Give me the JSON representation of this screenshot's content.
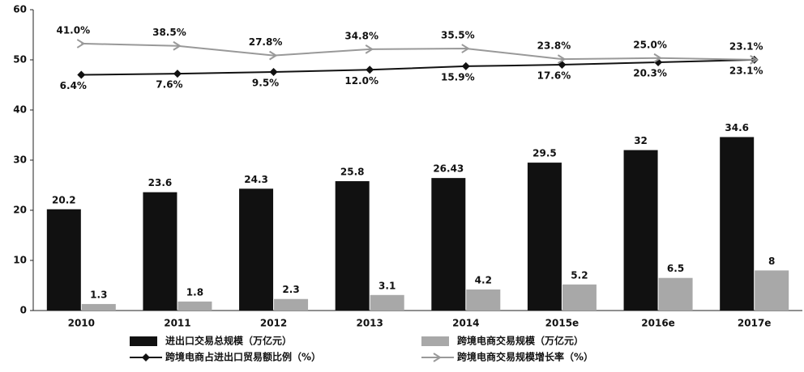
{
  "chart_data": {
    "type": "bar",
    "categories": [
      "2010",
      "2011",
      "2012",
      "2013",
      "2014",
      "2015e",
      "2016e",
      "2017e"
    ],
    "ylim": [
      0,
      60
    ],
    "yticks": [
      0,
      10,
      20,
      30,
      40,
      50,
      60
    ],
    "y2lim": [
      -255,
      78.6
    ],
    "series": [
      {
        "name": "进出口交易总规模（万亿元）",
        "type": "bar",
        "color": "#111111",
        "values": [
          20.2,
          23.6,
          24.3,
          25.8,
          26.43,
          29.5,
          32,
          34.6
        ]
      },
      {
        "name": "跨境电商交易规模（万亿元）",
        "type": "bar",
        "color": "#a8a8a8",
        "values": [
          1.3,
          1.8,
          2.3,
          3.1,
          4.2,
          5.2,
          6.5,
          8
        ]
      },
      {
        "name": "跨境电商占进出口贸易额比例（%）",
        "type": "line",
        "axis": "y2",
        "color": "#111111",
        "marker": "diamond",
        "values": [
          6.4,
          7.6,
          9.5,
          12.0,
          15.9,
          17.6,
          20.3,
          23.1
        ],
        "value_labels": [
          "6.4%",
          "7.6%",
          "9.5%",
          "12.0%",
          "15.9%",
          "17.6%",
          "20.3%",
          "23.1%"
        ]
      },
      {
        "name": "跨境电商交易规模增长率（%）",
        "type": "line",
        "axis": "y2",
        "color": "#999999",
        "marker": "chevron",
        "values": [
          41.0,
          38.5,
          27.8,
          34.8,
          35.5,
          23.8,
          25.0,
          23.1
        ],
        "value_labels": [
          "41.0%",
          "38.5%",
          "27.8%",
          "34.8%",
          "35.5%",
          "23.8%",
          "25.0%",
          "23.1%"
        ]
      }
    ]
  }
}
